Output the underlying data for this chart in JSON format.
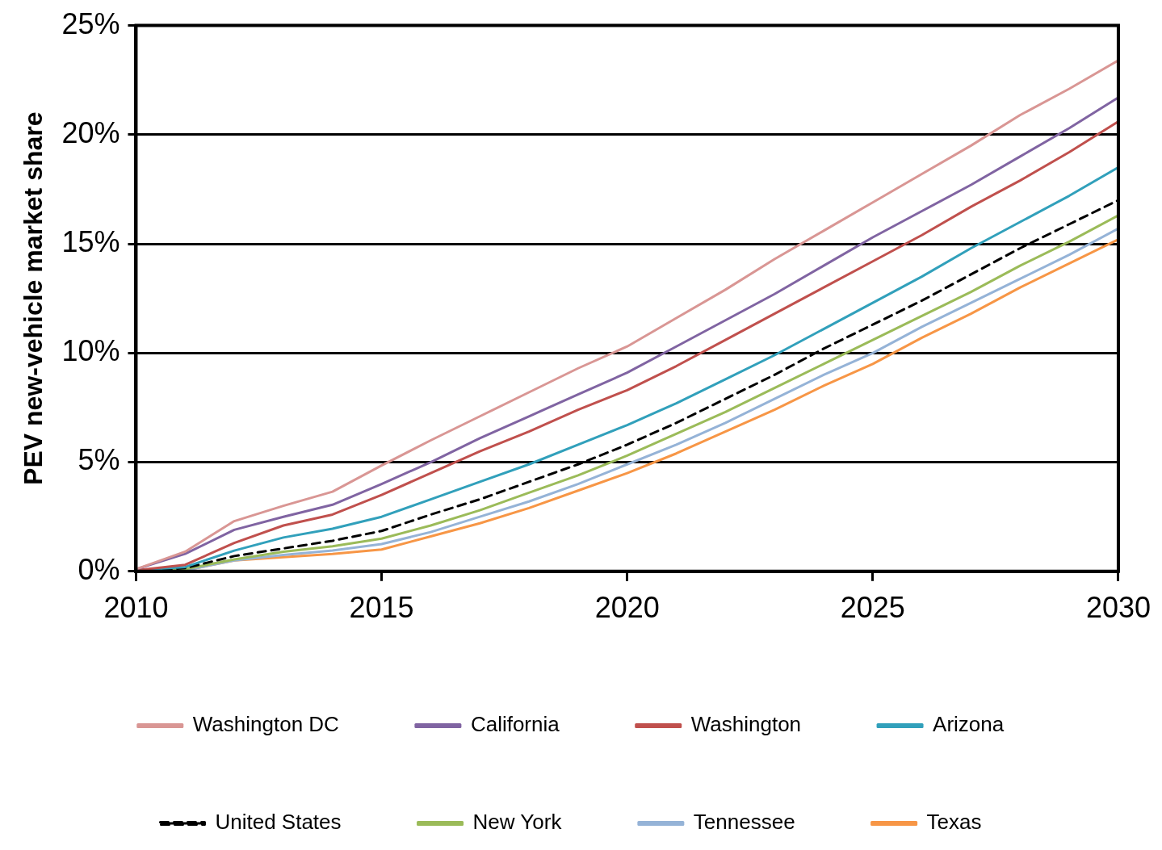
{
  "chart_data": {
    "type": "line",
    "ylabel": "PEV new-vehicle market share",
    "x": [
      2010,
      2011,
      2012,
      2013,
      2014,
      2015,
      2016,
      2017,
      2018,
      2019,
      2020,
      2021,
      2022,
      2023,
      2024,
      2025,
      2026,
      2027,
      2028,
      2029,
      2030
    ],
    "xlim": [
      2010,
      2030
    ],
    "xticks": [
      2010,
      2015,
      2020,
      2025,
      2030
    ],
    "ylim": [
      0,
      25
    ],
    "yticks": [
      {
        "value": 0,
        "label": "0%"
      },
      {
        "value": 5,
        "label": "5%"
      },
      {
        "value": 10,
        "label": "10%"
      },
      {
        "value": 15,
        "label": "15%"
      },
      {
        "value": 20,
        "label": "20%"
      },
      {
        "value": 25,
        "label": "25%"
      }
    ],
    "grid": "y",
    "legend": "bottom",
    "marker": "none",
    "series": [
      {
        "name": "Washington DC",
        "color": "#d99694",
        "values": [
          0.1,
          0.9,
          2.3,
          3.0,
          3.65,
          4.85,
          6.0,
          7.1,
          8.2,
          9.3,
          10.3,
          11.6,
          12.9,
          14.3,
          15.6,
          16.9,
          18.2,
          19.5,
          20.9,
          22.1,
          23.4
        ]
      },
      {
        "name": "California",
        "color": "#8064a2",
        "values": [
          0.1,
          0.8,
          1.9,
          2.5,
          3.05,
          4.0,
          5.0,
          6.1,
          7.1,
          8.1,
          9.1,
          10.3,
          11.5,
          12.7,
          14.0,
          15.3,
          16.5,
          17.7,
          19.0,
          20.3,
          21.7
        ]
      },
      {
        "name": "Washington",
        "color": "#c0504d",
        "values": [
          0.05,
          0.3,
          1.3,
          2.1,
          2.6,
          3.5,
          4.5,
          5.5,
          6.4,
          7.4,
          8.3,
          9.4,
          10.6,
          11.8,
          13.0,
          14.2,
          15.4,
          16.7,
          17.9,
          19.2,
          20.6
        ]
      },
      {
        "name": "Arizona",
        "color": "#31a0bb",
        "values": [
          0.05,
          0.2,
          0.95,
          1.55,
          1.95,
          2.5,
          3.3,
          4.1,
          4.9,
          5.8,
          6.7,
          7.7,
          8.8,
          9.9,
          11.1,
          12.3,
          13.5,
          14.8,
          16.0,
          17.2,
          18.5
        ]
      },
      {
        "name": "United States",
        "color": "#000000",
        "line_style": "dashed",
        "values": [
          0,
          0.15,
          0.7,
          1.05,
          1.4,
          1.85,
          2.6,
          3.3,
          4.1,
          4.9,
          5.8,
          6.8,
          7.9,
          9.0,
          10.2,
          11.3,
          12.4,
          13.6,
          14.8,
          15.9,
          17.0
        ]
      },
      {
        "name": "New York",
        "color": "#9bbb59",
        "values": [
          0,
          0.1,
          0.55,
          0.9,
          1.15,
          1.5,
          2.1,
          2.8,
          3.6,
          4.4,
          5.3,
          6.3,
          7.3,
          8.4,
          9.5,
          10.6,
          11.7,
          12.8,
          14.0,
          15.1,
          16.3
        ]
      },
      {
        "name": "Tennessee",
        "color": "#95b3d7",
        "values": [
          0,
          0.05,
          0.5,
          0.75,
          0.95,
          1.25,
          1.8,
          2.5,
          3.2,
          4.0,
          4.9,
          5.8,
          6.8,
          7.9,
          9.0,
          10.0,
          11.2,
          12.3,
          13.4,
          14.5,
          15.7
        ]
      },
      {
        "name": "Texas",
        "color": "#f79646",
        "values": [
          0,
          0.05,
          0.5,
          0.65,
          0.8,
          1.0,
          1.6,
          2.2,
          2.9,
          3.7,
          4.5,
          5.4,
          6.4,
          7.4,
          8.5,
          9.5,
          10.7,
          11.8,
          13.0,
          14.1,
          15.2
        ]
      }
    ]
  }
}
